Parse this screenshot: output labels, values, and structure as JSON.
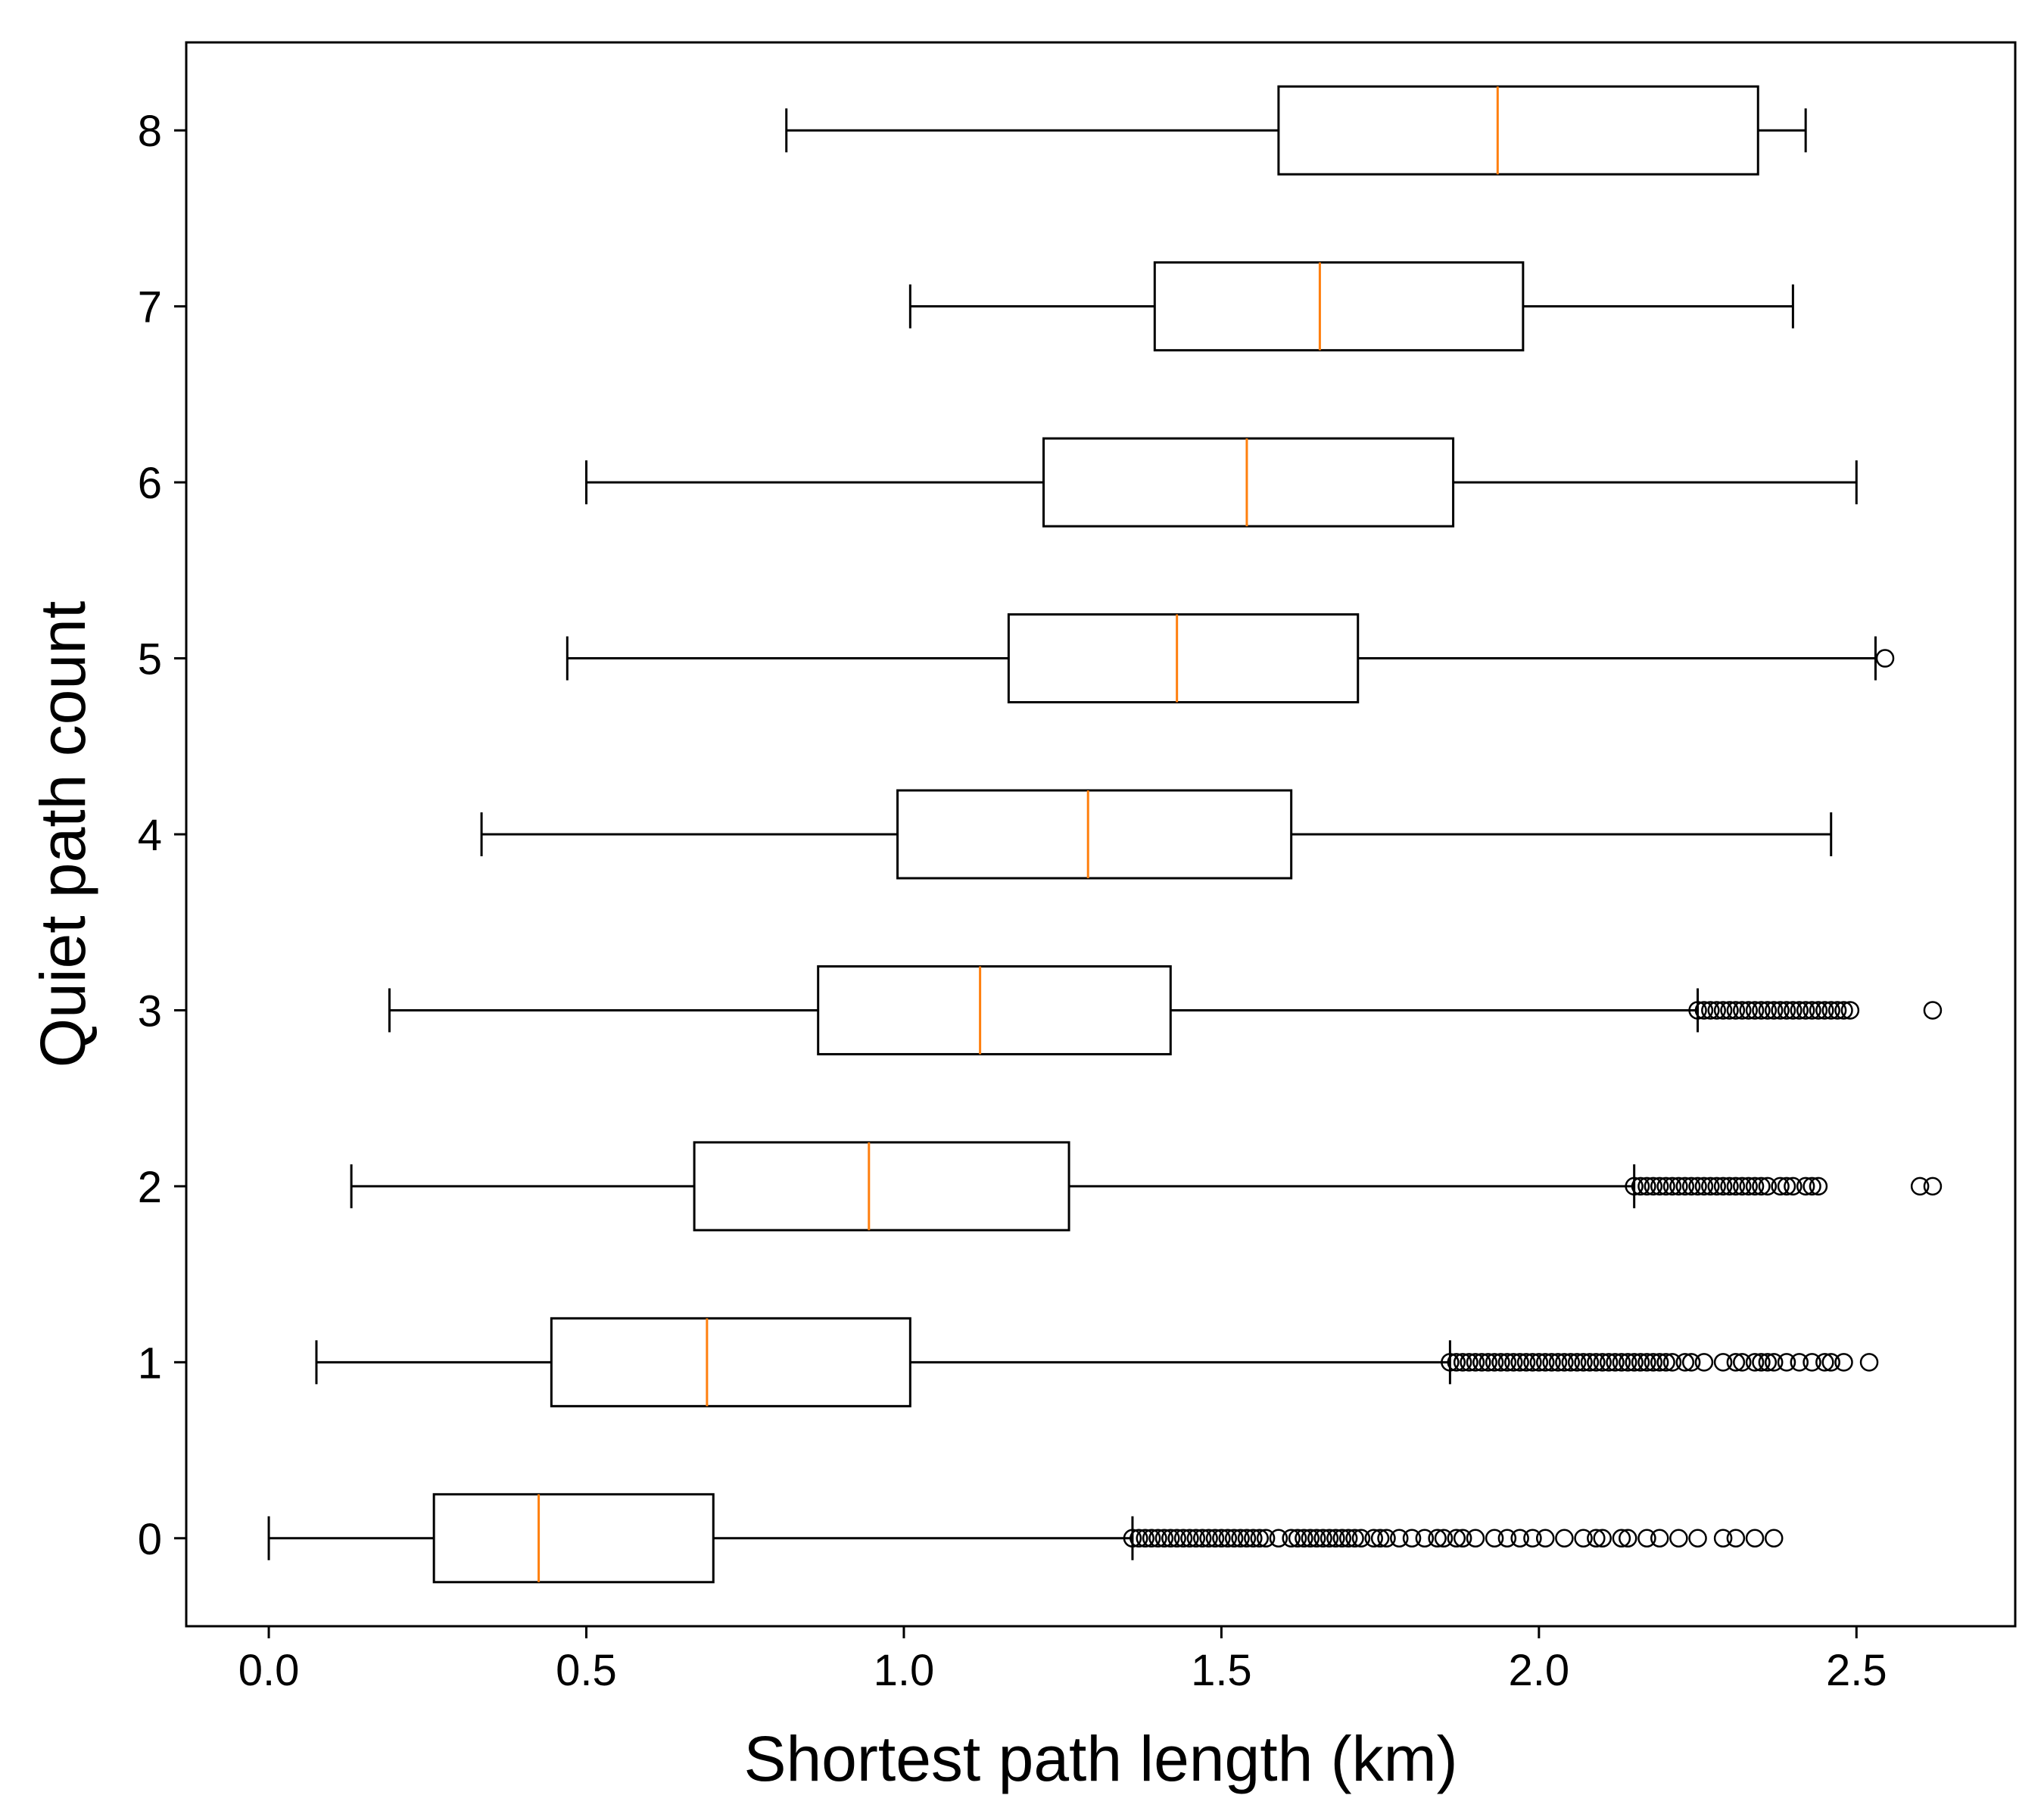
{
  "chart_data": {
    "type": "boxplot",
    "orientation": "horizontal",
    "title": "",
    "xlabel": "Shortest path length (km)",
    "ylabel": "Quiet path count",
    "xlim": [
      -0.13,
      2.75
    ],
    "ylim": [
      -0.5,
      8.5
    ],
    "xticks": [
      0.0,
      0.5,
      1.0,
      1.5,
      2.0,
      2.5
    ],
    "xtick_labels": [
      "0.0",
      "0.5",
      "1.0",
      "1.5",
      "2.0",
      "2.5"
    ],
    "ytick_labels": [
      "0",
      "1",
      "2",
      "3",
      "4",
      "5",
      "6",
      "7",
      "8"
    ],
    "grid": false,
    "colors": {
      "box": "#000000",
      "median": "#ff7f0e",
      "outlier": "#000000"
    },
    "series": [
      {
        "category": "0",
        "whisker_low": 0.0,
        "q1": 0.26,
        "median": 0.425,
        "q3": 0.7,
        "whisker_high": 1.36,
        "outliers": [
          1.36,
          1.37,
          1.38,
          1.39,
          1.4,
          1.41,
          1.42,
          1.43,
          1.44,
          1.45,
          1.46,
          1.47,
          1.48,
          1.49,
          1.5,
          1.51,
          1.52,
          1.53,
          1.54,
          1.55,
          1.56,
          1.57,
          1.59,
          1.61,
          1.62,
          1.63,
          1.64,
          1.65,
          1.66,
          1.67,
          1.68,
          1.69,
          1.7,
          1.71,
          1.72,
          1.74,
          1.75,
          1.76,
          1.78,
          1.8,
          1.82,
          1.84,
          1.85,
          1.87,
          1.88,
          1.9,
          1.93,
          1.95,
          1.97,
          1.99,
          2.01,
          2.04,
          2.07,
          2.09,
          2.1,
          2.13,
          2.14,
          2.17,
          2.19,
          2.22,
          2.25,
          2.29,
          2.31,
          2.34,
          2.37
        ]
      },
      {
        "category": "1",
        "whisker_low": 0.075,
        "q1": 0.445,
        "median": 0.69,
        "q3": 1.01,
        "whisker_high": 1.86,
        "outliers": [
          1.86,
          1.87,
          1.88,
          1.89,
          1.9,
          1.91,
          1.92,
          1.93,
          1.94,
          1.95,
          1.96,
          1.97,
          1.98,
          1.99,
          2.0,
          2.01,
          2.02,
          2.03,
          2.04,
          2.05,
          2.06,
          2.07,
          2.08,
          2.09,
          2.1,
          2.11,
          2.12,
          2.13,
          2.14,
          2.15,
          2.16,
          2.17,
          2.18,
          2.19,
          2.2,
          2.21,
          2.23,
          2.24,
          2.26,
          2.29,
          2.31,
          2.32,
          2.34,
          2.35,
          2.36,
          2.37,
          2.39,
          2.41,
          2.43,
          2.45,
          2.46,
          2.48,
          2.52
        ]
      },
      {
        "category": "2",
        "whisker_low": 0.13,
        "q1": 0.67,
        "median": 0.945,
        "q3": 1.26,
        "whisker_high": 2.15,
        "outliers": [
          2.15,
          2.16,
          2.17,
          2.18,
          2.19,
          2.2,
          2.21,
          2.22,
          2.23,
          2.24,
          2.25,
          2.26,
          2.27,
          2.28,
          2.29,
          2.3,
          2.31,
          2.32,
          2.33,
          2.34,
          2.35,
          2.36,
          2.38,
          2.39,
          2.4,
          2.42,
          2.43,
          2.44,
          2.6,
          2.62
        ]
      },
      {
        "category": "3",
        "whisker_low": 0.19,
        "q1": 0.865,
        "median": 1.12,
        "q3": 1.42,
        "whisker_high": 2.25,
        "outliers": [
          2.25,
          2.26,
          2.27,
          2.28,
          2.29,
          2.3,
          2.31,
          2.32,
          2.33,
          2.34,
          2.35,
          2.36,
          2.37,
          2.38,
          2.39,
          2.4,
          2.41,
          2.42,
          2.43,
          2.44,
          2.45,
          2.46,
          2.47,
          2.48,
          2.49,
          2.62
        ]
      },
      {
        "category": "4",
        "whisker_low": 0.335,
        "q1": 0.99,
        "median": 1.29,
        "q3": 1.61,
        "whisker_high": 2.46,
        "outliers": []
      },
      {
        "category": "5",
        "whisker_low": 0.47,
        "q1": 1.165,
        "median": 1.43,
        "q3": 1.715,
        "whisker_high": 2.53,
        "outliers": [
          2.545
        ]
      },
      {
        "category": "6",
        "whisker_low": 0.5,
        "q1": 1.22,
        "median": 1.54,
        "q3": 1.865,
        "whisker_high": 2.5,
        "outliers": []
      },
      {
        "category": "7",
        "whisker_low": 1.01,
        "q1": 1.395,
        "median": 1.655,
        "q3": 1.975,
        "whisker_high": 2.4,
        "outliers": []
      },
      {
        "category": "8",
        "whisker_low": 0.815,
        "q1": 1.59,
        "median": 1.935,
        "q3": 2.345,
        "whisker_high": 2.42,
        "outliers": []
      }
    ]
  }
}
